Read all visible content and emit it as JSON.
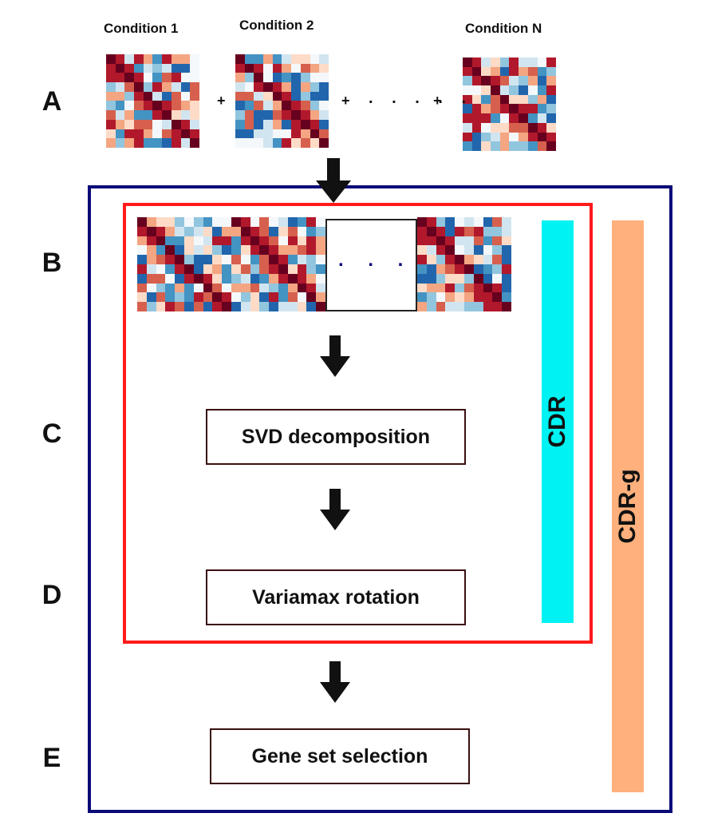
{
  "conditions": [
    "Condition 1",
    "Condition 2",
    "Condition N"
  ],
  "row_labels": [
    "A",
    "B",
    "C",
    "D",
    "E"
  ],
  "plus_sign": "+",
  "ellipsis": ". . . . .",
  "concat_dots": ". . . .",
  "steps": {
    "svd": "SVD decomposition",
    "varimax": "Variamax rotation",
    "gene_set": "Gene set selection"
  },
  "bars": {
    "cdr": {
      "label": "CDR",
      "color": "#00f2f2"
    },
    "cdr_g": {
      "label": "CDR-g",
      "color": "#ffb07c"
    }
  },
  "colors": {
    "outer_frame": "#0a0a78",
    "inner_frame": "#ff1a1a",
    "arrow": "#111111"
  }
}
